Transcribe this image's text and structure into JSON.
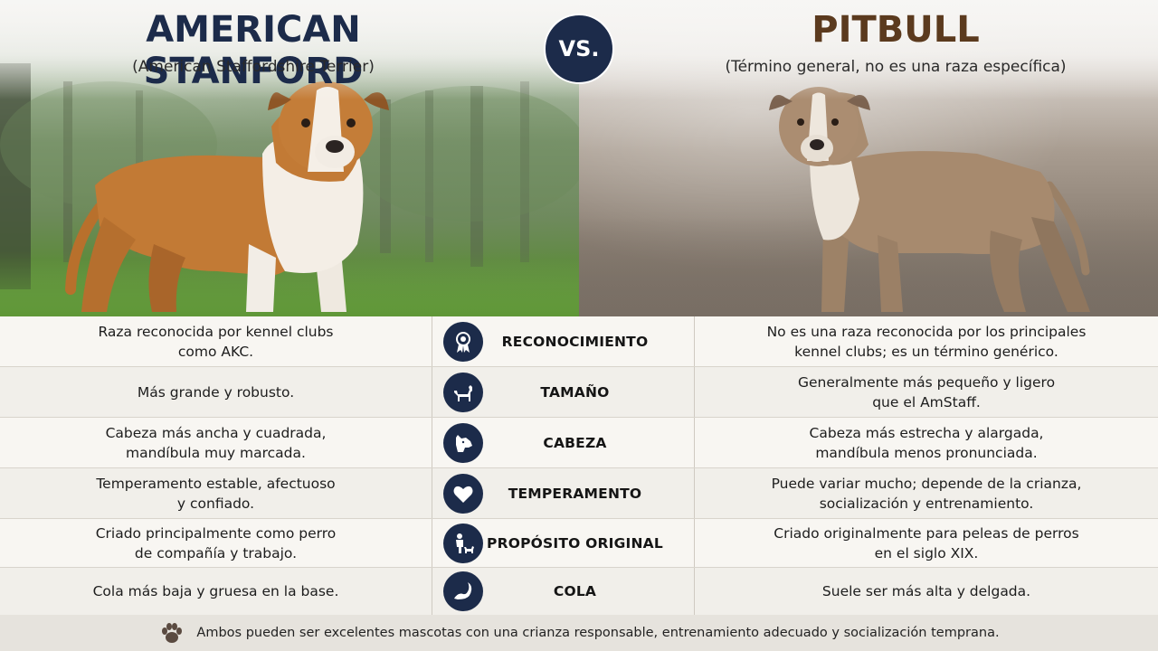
{
  "header": {
    "left_title": "AMERICAN STANFORD",
    "left_subtitle": "(American Staffordshire Terrier)",
    "vs_label": "VS.",
    "right_title": "PITBULL",
    "right_subtitle": "(Término general, no es una raza específica)"
  },
  "colors": {
    "navy": "#1c2b4a",
    "brown": "#5b3a1e"
  },
  "rows": [
    {
      "icon": "ribbon-award-icon",
      "category": "RECONOCIMIENTO",
      "left_line1": "Raza reconocida por kennel clubs",
      "left_line2": "como AKC.",
      "right_line1": "No es una raza reconocida por los principales",
      "right_line2": "kennel clubs; es un término genérico."
    },
    {
      "icon": "dog-silhouette-icon",
      "category": "TAMAÑO",
      "left_line1": "Más grande y robusto.",
      "left_line2": "",
      "right_line1": "Generalmente más pequeño y ligero",
      "right_line2": "que el AmStaff."
    },
    {
      "icon": "dog-head-icon",
      "category": "CABEZA",
      "left_line1": "Cabeza más ancha y cuadrada,",
      "left_line2": "mandíbula muy marcada.",
      "right_line1": "Cabeza más estrecha y alargada,",
      "right_line2": "mandíbula menos pronunciada."
    },
    {
      "icon": "heart-icon",
      "category": "TEMPERAMENTO",
      "left_line1": "Temperamento estable, afectuoso",
      "left_line2": "y confiado.",
      "right_line1": "Puede variar mucho; depende de la crianza,",
      "right_line2": "socialización y entrenamiento."
    },
    {
      "icon": "person-with-dog-icon",
      "category": "PROPÓSITO ORIGINAL",
      "left_line1": "Criado principalmente como perro",
      "left_line2": "de compañía y trabajo.",
      "right_line1": "Criado originalmente para peleas de perros",
      "right_line2": "en el siglo XIX."
    },
    {
      "icon": "dog-tail-icon",
      "category": "COLA",
      "left_line1": "Cola más baja y gruesa en la base.",
      "left_line2": "",
      "right_line1": "Suele ser más alta y delgada.",
      "right_line2": ""
    }
  ],
  "footer": {
    "icon": "paw-print-icon",
    "text": "Ambos pueden ser excelentes mascotas con una crianza responsable, entrenamiento adecuado y socialización temprana."
  }
}
